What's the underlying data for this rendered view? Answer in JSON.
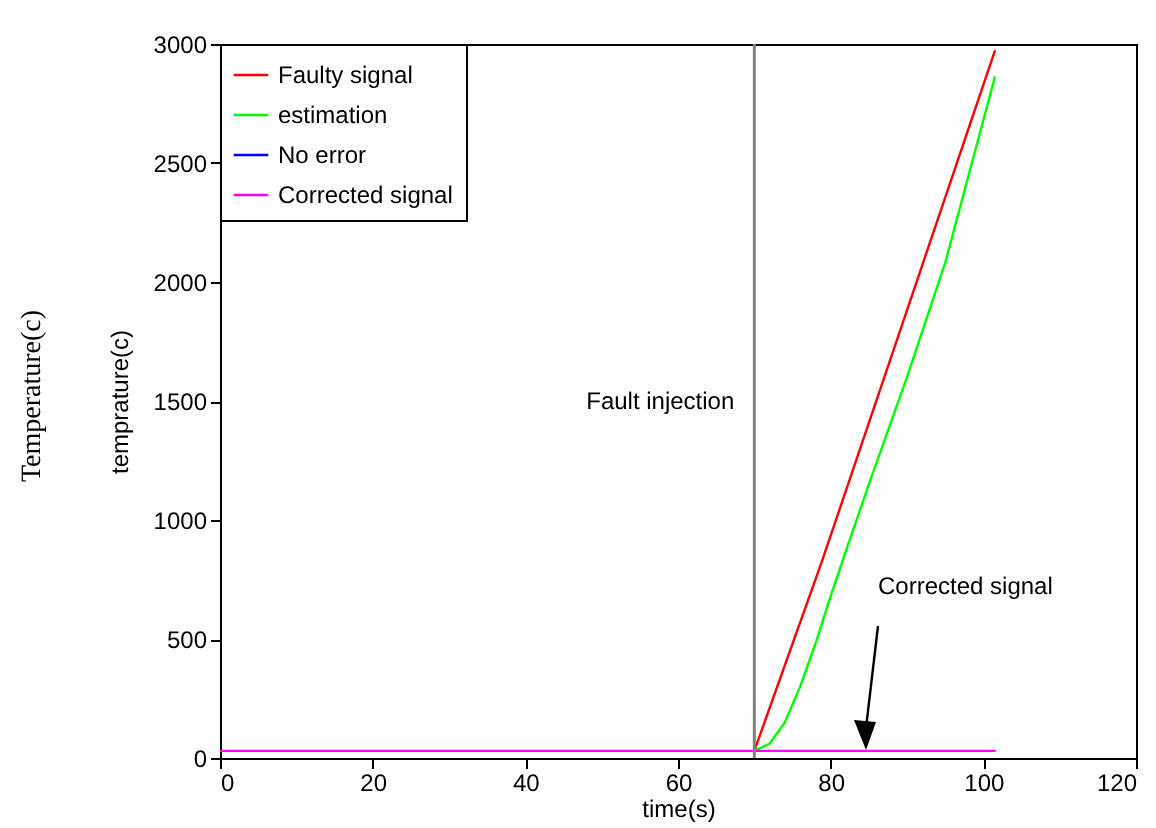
{
  "chart_data": {
    "type": "line",
    "xlabel": "time(s)",
    "ylabel": "temprature(c)",
    "xlim": [
      0,
      120
    ],
    "ylim": [
      0,
      3000
    ],
    "xticks": [
      0,
      20,
      40,
      60,
      80,
      100,
      120
    ],
    "yticks": [
      0,
      500,
      1000,
      1500,
      2000,
      2500,
      3000
    ],
    "grid": false,
    "legend": "top left",
    "series": [
      {
        "name": "Faulty signal",
        "color": "#ff0000",
        "x": [
          70,
          78.9,
          101.5
        ],
        "values": [
          30,
          830,
          2970
        ]
      },
      {
        "name": "estimation",
        "color": "#00ff00",
        "x": [
          70,
          72,
          74,
          76,
          78,
          80,
          82,
          85,
          90,
          95,
          101.5
        ],
        "values": [
          30,
          60,
          150,
          300,
          480,
          680,
          870,
          1150,
          1600,
          2080,
          2860
        ]
      },
      {
        "name": "No error",
        "color": "#0000ff"
      },
      {
        "name": "Corrected signal",
        "color": "#ff00ff",
        "x": [
          0,
          101.5
        ],
        "values": [
          30,
          30
        ]
      }
    ],
    "ref_lines": [
      {
        "axis": "x",
        "value": 70,
        "label": "Fault injection",
        "color": "#808080"
      }
    ],
    "annotations": [
      "Temperature(c)",
      "Corrected signal"
    ]
  }
}
